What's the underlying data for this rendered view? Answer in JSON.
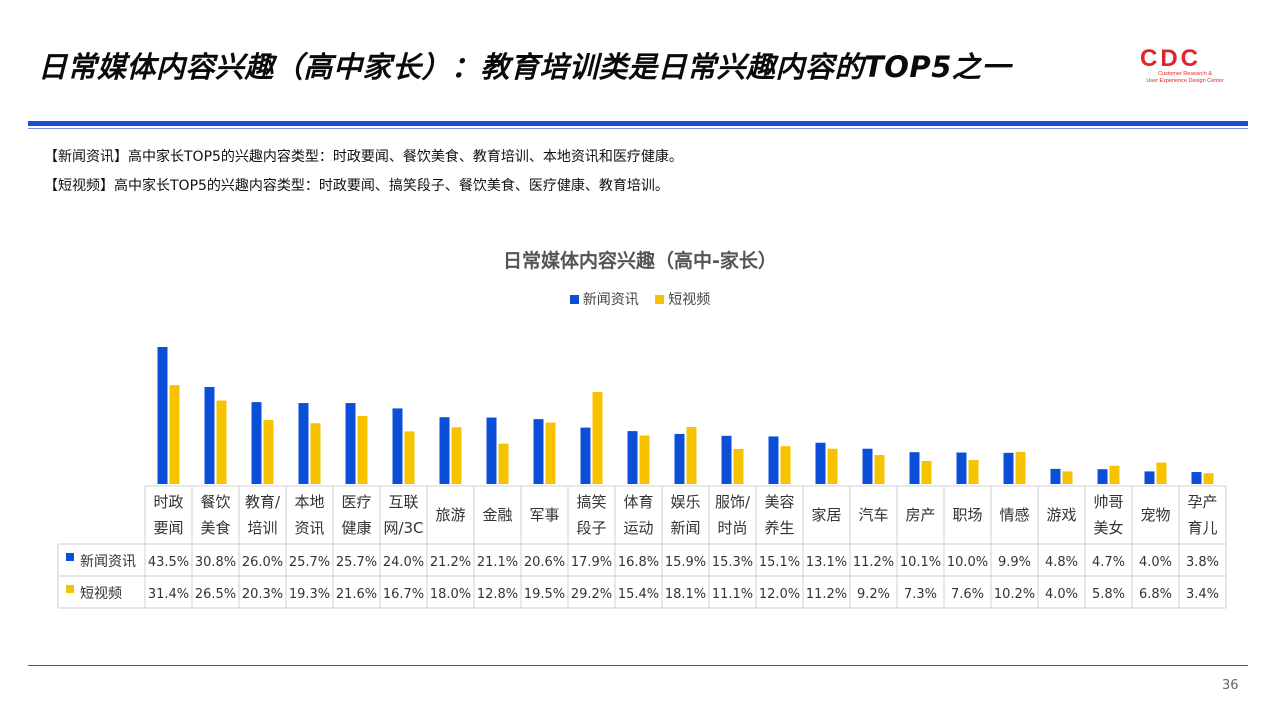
{
  "header": {
    "title": "日常媒体内容兴趣（高中家长）：教育培训类是日常兴趣内容的TOP5之一",
    "logo_mark": "CDC",
    "logo_sub_line1": "Customer Research &",
    "logo_sub_line2": "User Experience Design Center"
  },
  "notes": [
    "【新闻资讯】高中家长TOP5的兴趣内容类型：时政要闻、餐饮美食、教育培训、本地资讯和医疗健康。",
    "【短视频】高中家长TOP5的兴趣内容类型：时政要闻、搞笑段子、餐饮美食、医疗健康、教育培训。"
  ],
  "page_number": "36",
  "colors": {
    "accent": "#1d4ed8",
    "series1": "#0b4fd9",
    "series2": "#f7c200",
    "logo": "#e0242b"
  },
  "chart_data": {
    "type": "bar",
    "title": "日常媒体内容兴趣（高中-家长）",
    "legend_position": "top",
    "categories": [
      [
        "时政",
        "要闻"
      ],
      [
        "餐饮",
        "美食"
      ],
      [
        "教育/",
        "培训"
      ],
      [
        "本地",
        "资讯"
      ],
      [
        "医疗",
        "健康"
      ],
      [
        "互联",
        "网/3C"
      ],
      [
        "旅游"
      ],
      [
        "金融"
      ],
      [
        "军事"
      ],
      [
        "搞笑",
        "段子"
      ],
      [
        "体育",
        "运动"
      ],
      [
        "娱乐",
        "新闻"
      ],
      [
        "服饰/",
        "时尚"
      ],
      [
        "美容",
        "养生"
      ],
      [
        "家居"
      ],
      [
        "汽车"
      ],
      [
        "房产"
      ],
      [
        "职场"
      ],
      [
        "情感"
      ],
      [
        "游戏"
      ],
      [
        "帅哥",
        "美女"
      ],
      [
        "宠物"
      ],
      [
        "孕产",
        "育儿"
      ]
    ],
    "series": [
      {
        "name": "新闻资讯",
        "color": "#0b4fd9",
        "values": [
          43.5,
          30.8,
          26.0,
          25.7,
          25.7,
          24.0,
          21.2,
          21.1,
          20.6,
          17.9,
          16.8,
          15.9,
          15.3,
          15.1,
          13.1,
          11.2,
          10.1,
          10.0,
          9.9,
          4.8,
          4.7,
          4.0,
          3.8
        ],
        "labels": [
          "43.5%",
          "30.8%",
          "26.0%",
          "25.7%",
          "25.7%",
          "24.0%",
          "21.2%",
          "21.1%",
          "20.6%",
          "17.9%",
          "16.8%",
          "15.9%",
          "15.3%",
          "15.1%",
          "13.1%",
          "11.2%",
          "10.1%",
          "10.0%",
          "9.9%",
          "4.8%",
          "4.7%",
          "4.0%",
          "3.8%"
        ]
      },
      {
        "name": "短视频",
        "color": "#f7c200",
        "values": [
          31.4,
          26.5,
          20.3,
          19.3,
          21.6,
          16.7,
          18.0,
          12.8,
          19.5,
          29.2,
          15.4,
          18.1,
          11.1,
          12.0,
          11.2,
          9.2,
          7.3,
          7.6,
          10.2,
          4.0,
          5.8,
          6.8,
          3.4
        ],
        "labels": [
          "31.4%",
          "26.5%",
          "20.3%",
          "19.3%",
          "21.6%",
          "16.7%",
          "18.0%",
          "12.8%",
          "19.5%",
          "29.2%",
          "15.4%",
          "18.1%",
          "11.1%",
          "12.0%",
          "11.2%",
          "9.2%",
          "7.3%",
          "7.6%",
          "10.2%",
          "4.0%",
          "5.8%",
          "6.8%",
          "3.4%"
        ]
      }
    ],
    "ylim": [
      0,
      45
    ],
    "grid": false,
    "data_table": true
  }
}
